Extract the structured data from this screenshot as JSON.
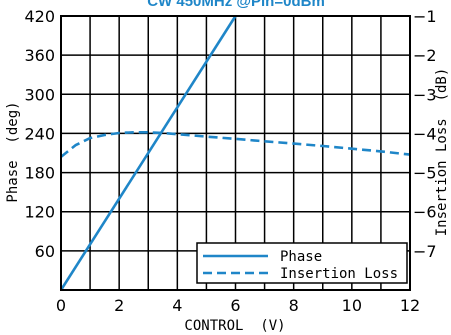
{
  "chart_data": {
    "type": "line",
    "title": "CW 450MHz @Pin=0dBm",
    "xlabel": "CONTROL  (V)",
    "ylabel_left": "Phase  (deg)",
    "ylabel_right": "Insertion Loss  (dB)",
    "xlim": [
      0,
      12
    ],
    "ylim_left": [
      0,
      420
    ],
    "ylim_right": [
      -8,
      -1
    ],
    "x_ticks": [
      "0",
      "2",
      "4",
      "6",
      "8",
      "10",
      "12"
    ],
    "y_left_ticks": [
      "60",
      "120",
      "180",
      "240",
      "300",
      "360",
      "420"
    ],
    "y_right_ticks": [
      "-1",
      "-2",
      "-3",
      "-4",
      "-5",
      "-6",
      "-7"
    ],
    "grid": true,
    "legend_position": "bottom-right",
    "series": [
      {
        "name": "Phase",
        "axis": "left",
        "style": "solid",
        "color": "#1f86c8",
        "x": [
          0,
          6
        ],
        "y": [
          0,
          420
        ]
      },
      {
        "name": "Insertion Loss",
        "axis": "right",
        "style": "dashed",
        "color": "#1f86c8",
        "x": [
          0,
          0.5,
          1,
          1.5,
          2,
          2.5,
          3,
          3.5,
          4,
          5,
          6,
          7,
          8,
          9,
          10,
          11,
          12
        ],
        "y": [
          -4.6,
          -4.3,
          -4.12,
          -4.04,
          -3.99,
          -3.97,
          -3.97,
          -3.99,
          -4.02,
          -4.08,
          -4.14,
          -4.2,
          -4.26,
          -4.32,
          -4.39,
          -4.46,
          -4.54
        ]
      }
    ]
  }
}
